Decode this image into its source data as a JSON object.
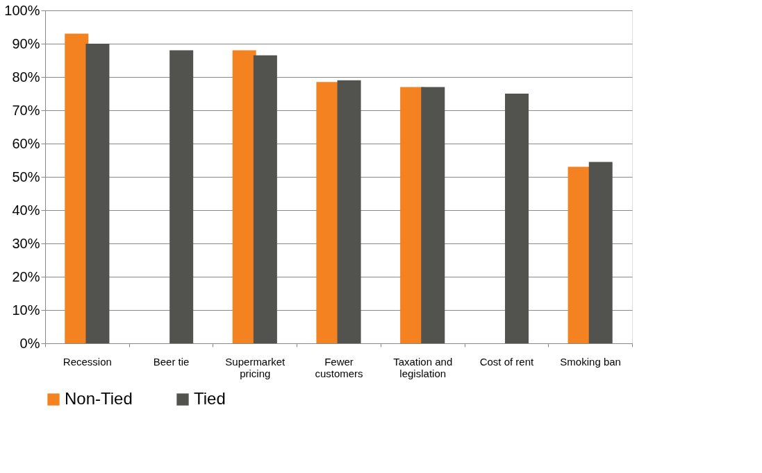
{
  "chart_data": {
    "type": "bar",
    "categories": [
      "Recession",
      "Beer tie",
      "Supermarket pricing",
      "Fewer customers",
      "Taxation and legislation",
      "Cost of rent",
      "Smoking ban"
    ],
    "series": [
      {
        "name": "Non-Tied",
        "color": "#f58220",
        "values": [
          93,
          null,
          88,
          78.5,
          77,
          null,
          53
        ]
      },
      {
        "name": "Tied",
        "color": "#52524e",
        "values": [
          90,
          88,
          86.5,
          79,
          77,
          75,
          54.5
        ]
      }
    ],
    "ylim": [
      0,
      100
    ],
    "yticks": [
      {
        "value": 0,
        "label": "0%"
      },
      {
        "value": 10,
        "label": "10%"
      },
      {
        "value": 20,
        "label": "20%"
      },
      {
        "value": 30,
        "label": "30%"
      },
      {
        "value": 40,
        "label": "40%"
      },
      {
        "value": 50,
        "label": "50%"
      },
      {
        "value": 60,
        "label": "60%"
      },
      {
        "value": 70,
        "label": "70%"
      },
      {
        "value": 80,
        "label": "80%"
      },
      {
        "value": 90,
        "label": "90%"
      },
      {
        "value": 100,
        "label": "100%"
      }
    ],
    "grid": "y",
    "legend": "bottom"
  }
}
